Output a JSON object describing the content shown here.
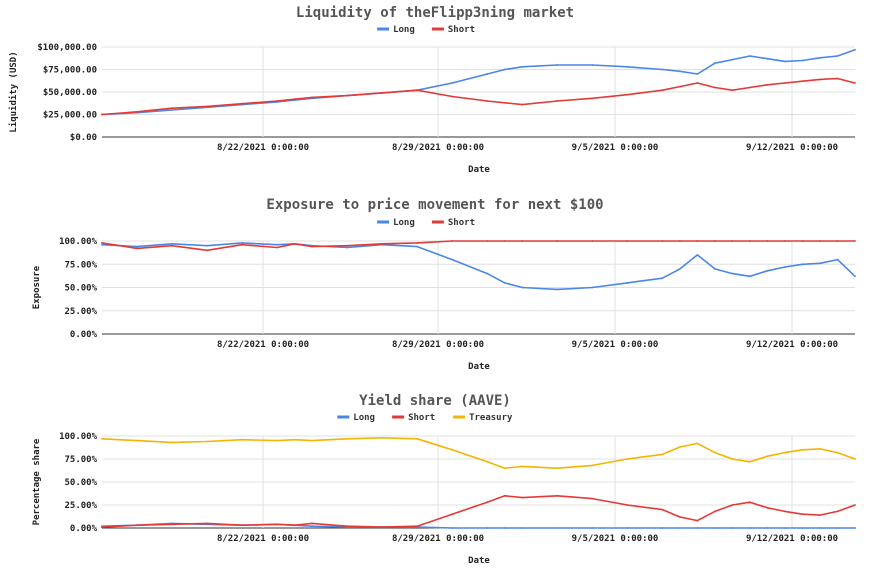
{
  "colors": {
    "long": "#4a86e8",
    "short": "#e53935",
    "treasury": "#f4b400",
    "grid": "#e0e0e0",
    "axis": "#333333"
  },
  "chart_data": [
    {
      "type": "line",
      "title": "Liquidity of theFlipp3ning market",
      "xlabel": "Date",
      "ylabel": "Liquidity (USD)",
      "ylim": [
        0,
        100000
      ],
      "y_ticks": [
        "$100,000.00",
        "$75,000.00",
        "$50,000.00",
        "$25,000.00",
        "$0.00"
      ],
      "x_ticks": [
        "8/22/2021 0:00:00",
        "8/29/2021 0:00:00",
        "9/5/2021 0:00:00",
        "9/12/2021 0:00:00"
      ],
      "legend": "top",
      "grid": true,
      "series": [
        {
          "name": "Long",
          "color": "#4a86e8",
          "x": [
            16,
            18,
            20,
            22,
            24,
            26,
            27,
            28,
            30,
            32,
            34,
            36,
            38,
            39,
            40,
            42,
            44,
            46,
            48,
            49,
            50,
            51,
            52,
            53,
            54,
            55,
            56,
            57,
            58,
            59
          ],
          "values": [
            25000,
            27000,
            30000,
            33000,
            36000,
            39000,
            41000,
            43000,
            46000,
            49000,
            52000,
            60000,
            70000,
            75000,
            78000,
            80000,
            80000,
            78000,
            75000,
            73000,
            70000,
            82000,
            86000,
            90000,
            87000,
            84000,
            85000,
            88000,
            90000,
            97000
          ]
        },
        {
          "name": "Short",
          "color": "#e53935",
          "x": [
            16,
            18,
            20,
            22,
            24,
            26,
            27,
            28,
            30,
            32,
            34,
            36,
            38,
            39,
            40,
            42,
            44,
            46,
            48,
            49,
            50,
            51,
            52,
            53,
            54,
            55,
            56,
            57,
            58,
            59
          ],
          "values": [
            25000,
            28000,
            32000,
            34000,
            37000,
            40000,
            42000,
            44000,
            46000,
            49000,
            52000,
            45000,
            40000,
            38000,
            36000,
            40000,
            43000,
            47000,
            52000,
            56000,
            60000,
            55000,
            52000,
            55000,
            58000,
            60000,
            62000,
            64000,
            65000,
            60000
          ]
        }
      ]
    },
    {
      "type": "line",
      "title": "Exposure to price movement for next $100",
      "xlabel": "Date",
      "ylabel": "Exposure",
      "ylim": [
        0,
        100
      ],
      "y_ticks": [
        "100.00%",
        "75.00%",
        "50.00%",
        "25.00%",
        "0.00%"
      ],
      "x_ticks": [
        "8/22/2021 0:00:00",
        "8/29/2021 0:00:00",
        "9/5/2021 0:00:00",
        "9/12/2021 0:00:00"
      ],
      "legend": "top",
      "grid": true,
      "series": [
        {
          "name": "Long",
          "color": "#4a86e8",
          "x": [
            16,
            18,
            20,
            22,
            24,
            26,
            27,
            28,
            30,
            32,
            34,
            36,
            38,
            39,
            40,
            42,
            44,
            46,
            48,
            49,
            50,
            51,
            52,
            53,
            54,
            55,
            56,
            57,
            58,
            59
          ],
          "values": [
            96,
            94,
            97,
            95,
            98,
            96,
            97,
            95,
            93,
            96,
            94,
            80,
            65,
            55,
            50,
            48,
            50,
            55,
            60,
            70,
            85,
            70,
            65,
            62,
            68,
            72,
            75,
            76,
            80,
            62
          ]
        },
        {
          "name": "Short",
          "color": "#e53935",
          "x": [
            16,
            18,
            20,
            22,
            24,
            26,
            27,
            28,
            30,
            32,
            34,
            36,
            38,
            39,
            40,
            42,
            44,
            46,
            48,
            49,
            50,
            51,
            52,
            53,
            54,
            55,
            56,
            57,
            58,
            59
          ],
          "values": [
            98,
            92,
            95,
            90,
            96,
            93,
            97,
            94,
            95,
            97,
            98,
            100,
            100,
            100,
            100,
            100,
            100,
            100,
            100,
            100,
            100,
            100,
            100,
            100,
            100,
            100,
            100,
            100,
            100,
            100
          ]
        }
      ]
    },
    {
      "type": "line",
      "title": "Yield share (AAVE)",
      "xlabel": "Date",
      "ylabel": "Percentage share",
      "ylim": [
        0,
        100
      ],
      "y_ticks": [
        "100.00%",
        "75.00%",
        "50.00%",
        "25.00%",
        "0.00%"
      ],
      "x_ticks": [
        "8/22/2021 0:00:00",
        "8/29/2021 0:00:00",
        "9/5/2021 0:00:00",
        "9/12/2021 0:00:00"
      ],
      "legend": "top",
      "grid": true,
      "series": [
        {
          "name": "Long",
          "color": "#4a86e8",
          "x": [
            16,
            18,
            20,
            22,
            24,
            26,
            27,
            28,
            30,
            32,
            34,
            36,
            38,
            39,
            40,
            42,
            44,
            46,
            48,
            49,
            50,
            51,
            52,
            53,
            54,
            55,
            56,
            57,
            58,
            59
          ],
          "values": [
            2,
            3,
            5,
            4,
            3,
            4,
            3,
            2,
            1,
            1,
            1,
            0,
            0,
            0,
            0,
            0,
            0,
            0,
            0,
            0,
            0,
            0,
            0,
            0,
            0,
            0,
            0,
            0,
            0,
            0
          ]
        },
        {
          "name": "Short",
          "color": "#e53935",
          "x": [
            16,
            18,
            20,
            22,
            24,
            26,
            27,
            28,
            30,
            32,
            34,
            36,
            38,
            39,
            40,
            42,
            44,
            46,
            48,
            49,
            50,
            51,
            52,
            53,
            54,
            55,
            56,
            57,
            58,
            59
          ],
          "values": [
            1,
            3,
            4,
            5,
            3,
            4,
            3,
            5,
            2,
            1,
            2,
            15,
            28,
            35,
            33,
            35,
            32,
            25,
            20,
            12,
            8,
            18,
            25,
            28,
            22,
            18,
            15,
            14,
            18,
            25
          ]
        },
        {
          "name": "Treasury",
          "color": "#f4b400",
          "x": [
            16,
            18,
            20,
            22,
            24,
            26,
            27,
            28,
            30,
            32,
            34,
            36,
            38,
            39,
            40,
            42,
            44,
            46,
            48,
            49,
            50,
            51,
            52,
            53,
            54,
            55,
            56,
            57,
            58,
            59
          ],
          "values": [
            97,
            95,
            93,
            94,
            96,
            95,
            96,
            95,
            97,
            98,
            97,
            85,
            72,
            65,
            67,
            65,
            68,
            75,
            80,
            88,
            92,
            82,
            75,
            72,
            78,
            82,
            85,
            86,
            82,
            75
          ]
        }
      ]
    }
  ]
}
